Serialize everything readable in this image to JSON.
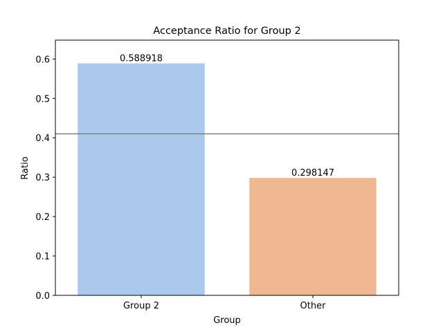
{
  "chart_data": {
    "type": "bar",
    "title": "Acceptance Ratio for Group 2",
    "xlabel": "Group",
    "ylabel": "Ratio",
    "categories": [
      "Group 2",
      "Other"
    ],
    "values": [
      0.588918,
      0.298147
    ],
    "value_labels": [
      "0.588918",
      "0.298147"
    ],
    "bar_colors": [
      "#abc9ed",
      "#f0b892"
    ],
    "ylim": [
      0,
      0.648
    ],
    "yticks": [
      0.0,
      0.1,
      0.2,
      0.3,
      0.4,
      0.5,
      0.6
    ],
    "ytick_labels": [
      "0.0",
      "0.1",
      "0.2",
      "0.3",
      "0.4",
      "0.5",
      "0.6"
    ],
    "reference_line": {
      "y": 0.41,
      "color": "#808080"
    },
    "grid": false,
    "legend": "none"
  }
}
